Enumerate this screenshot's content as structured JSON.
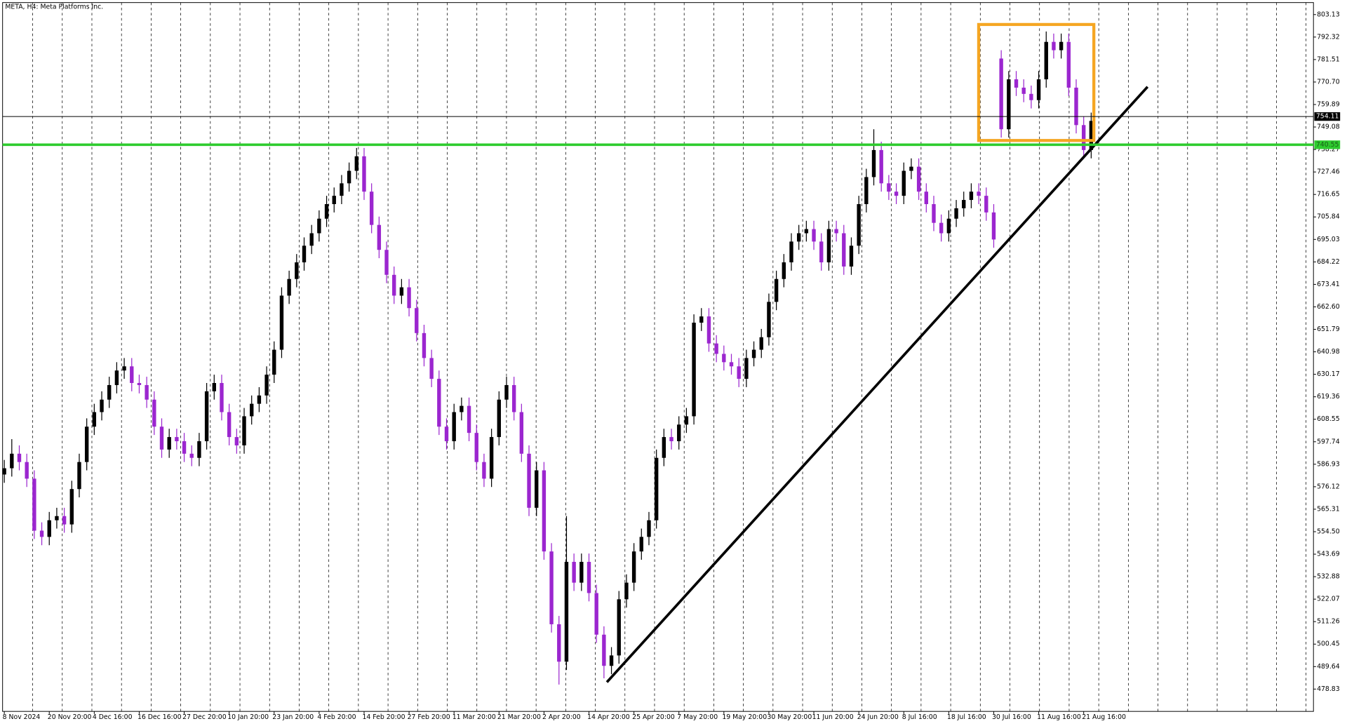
{
  "chart_data": {
    "type": "candlestick",
    "title": "META, H4:  Meta Platforms Inc.",
    "up_color": "#000000",
    "down_color": "#9b26cf",
    "ylim": [
      468.1,
      808.9
    ],
    "yticks": [
      803.13,
      792.32,
      781.51,
      {
        "value": 770.7,
        "label": "770.70"
      },
      759.89,
      749.08,
      738.27,
      727.46,
      716.65,
      705.84,
      695.03,
      684.22,
      673.41,
      {
        "value": 662.6,
        "label": "662.60"
      },
      651.79,
      640.98,
      630.17,
      619.36,
      608.55,
      597.74,
      586.93,
      576.12,
      565.31,
      {
        "value": 554.5,
        "label": "554.50"
      },
      543.69,
      532.88,
      522.07,
      511.26,
      500.45,
      489.64,
      478.83
    ],
    "price_lines": [
      {
        "value": 754.11,
        "color": "#000000"
      },
      {
        "value": 740.55,
        "color": "#2ecc2e"
      }
    ],
    "categories": [
      "8 Nov 2024",
      null,
      null,
      null,
      null,
      null,
      "20 Nov 20:00",
      null,
      null,
      null,
      null,
      null,
      "4 Dec 16:00",
      null,
      null,
      null,
      null,
      null,
      "16 Dec 16:00",
      null,
      null,
      null,
      null,
      null,
      "27 Dec 20:00",
      null,
      null,
      null,
      null,
      null,
      "10 Jan 20:00",
      null,
      null,
      null,
      null,
      null,
      "23 Jan 20:00",
      null,
      null,
      null,
      null,
      null,
      "4 Feb 20:00",
      null,
      null,
      null,
      null,
      null,
      "14 Feb 20:00",
      null,
      null,
      null,
      null,
      null,
      "27 Feb 20:00",
      null,
      null,
      null,
      null,
      null,
      "11 Mar 20:00",
      null,
      null,
      null,
      null,
      null,
      "21 Mar 20:00",
      null,
      null,
      null,
      null,
      null,
      "2 Apr 20:00",
      null,
      null,
      null,
      null,
      null,
      "14 Apr 20:00",
      null,
      null,
      null,
      null,
      null,
      "25 Apr 20:00",
      null,
      null,
      null,
      null,
      null,
      "7 May 20:00",
      null,
      null,
      null,
      null,
      null,
      "19 May 20:00",
      null,
      null,
      null,
      null,
      null,
      "30 May 20:00",
      null,
      null,
      null,
      null,
      null,
      "11 Jun 20:00",
      null,
      null,
      null,
      null,
      null,
      "24 Jun 20:00",
      null,
      null,
      null,
      null,
      null,
      "8 Jul 16:00",
      null,
      null,
      null,
      null,
      null,
      "18 Jul 16:00",
      null,
      null,
      null,
      null,
      null,
      "30 Jul 16:00",
      null,
      null,
      null,
      null,
      null,
      "11 Aug 16:00",
      null,
      null,
      null,
      null,
      null,
      "21 Aug 16:00",
      null
    ],
    "open": [
      582,
      585,
      592,
      588,
      580,
      555,
      552,
      560,
      562,
      558,
      575,
      588,
      605,
      612,
      618,
      625,
      632,
      634,
      626,
      625,
      618,
      605,
      594,
      600,
      598,
      592,
      590,
      598,
      622,
      626,
      612,
      600,
      596,
      610,
      616,
      620,
      630,
      642,
      668,
      676,
      684,
      692,
      698,
      705,
      712,
      716,
      722,
      728,
      735,
      718,
      702,
      690,
      678,
      668,
      672,
      662,
      650,
      638,
      628,
      605,
      598,
      612,
      615,
      602,
      588,
      580,
      600,
      618,
      625,
      612,
      592,
      566,
      584,
      545,
      510,
      492,
      540,
      530,
      540,
      525,
      505,
      490,
      495,
      522,
      530,
      545,
      552,
      560,
      590,
      600,
      598,
      606,
      610,
      655,
      658,
      645,
      640,
      636,
      634,
      628,
      638,
      642,
      648,
      665,
      676,
      684,
      694,
      698,
      700,
      694,
      684,
      700,
      698,
      682,
      692,
      712,
      725,
      738,
      722,
      718,
      716,
      728,
      730,
      718,
      712,
      703,
      698,
      705,
      710,
      714,
      718,
      716,
      708,
      782,
      748,
      772,
      768,
      765,
      762,
      772,
      790,
      786,
      790,
      768,
      750,
      738
    ],
    "high": [
      589,
      599,
      596,
      592,
      584,
      559,
      564,
      566,
      566,
      579,
      592,
      609,
      616,
      622,
      629,
      636,
      638,
      638,
      630,
      629,
      622,
      609,
      604,
      604,
      602,
      596,
      602,
      626,
      630,
      630,
      616,
      604,
      614,
      620,
      624,
      634,
      646,
      672,
      680,
      688,
      696,
      702,
      709,
      716,
      720,
      726,
      732,
      739,
      739,
      722,
      706,
      694,
      682,
      676,
      676,
      666,
      654,
      642,
      632,
      609,
      616,
      619,
      619,
      606,
      592,
      604,
      622,
      629,
      629,
      616,
      596,
      588,
      588,
      549,
      514,
      562,
      544,
      544,
      544,
      529,
      509,
      499,
      526,
      534,
      549,
      556,
      564,
      594,
      604,
      604,
      610,
      614,
      659,
      662,
      662,
      649,
      644,
      640,
      638,
      642,
      646,
      652,
      669,
      680,
      688,
      698,
      702,
      704,
      704,
      698,
      704,
      704,
      702,
      696,
      716,
      729,
      748,
      742,
      726,
      722,
      732,
      734,
      734,
      722,
      716,
      707,
      709,
      714,
      718,
      722,
      722,
      720,
      712,
      786,
      776,
      776,
      772,
      769,
      776,
      795,
      794,
      794,
      794,
      772,
      754,
      756
    ],
    "low": [
      578,
      581,
      584,
      576,
      551,
      548,
      548,
      556,
      554,
      554,
      571,
      584,
      601,
      608,
      614,
      621,
      628,
      622,
      621,
      614,
      601,
      590,
      590,
      594,
      588,
      586,
      586,
      594,
      618,
      608,
      596,
      592,
      592,
      606,
      612,
      616,
      626,
      638,
      664,
      672,
      680,
      688,
      694,
      701,
      708,
      712,
      718,
      724,
      714,
      698,
      686,
      674,
      664,
      664,
      658,
      646,
      634,
      624,
      601,
      594,
      594,
      608,
      598,
      584,
      576,
      576,
      596,
      614,
      608,
      588,
      562,
      562,
      541,
      506,
      481,
      488,
      526,
      526,
      521,
      501,
      484,
      486,
      491,
      518,
      526,
      541,
      548,
      556,
      586,
      594,
      594,
      602,
      606,
      651,
      641,
      636,
      632,
      630,
      624,
      624,
      634,
      638,
      644,
      661,
      672,
      680,
      690,
      694,
      690,
      680,
      680,
      694,
      678,
      678,
      688,
      708,
      721,
      718,
      714,
      712,
      712,
      724,
      714,
      708,
      699,
      694,
      694,
      701,
      706,
      710,
      712,
      704,
      691,
      744,
      744,
      764,
      761,
      758,
      758,
      768,
      782,
      782,
      764,
      746,
      734,
      734
    ],
    "close": [
      585,
      592,
      588,
      580,
      555,
      552,
      560,
      562,
      558,
      575,
      588,
      605,
      612,
      618,
      625,
      632,
      634,
      626,
      625,
      618,
      605,
      594,
      600,
      598,
      592,
      590,
      598,
      622,
      626,
      612,
      600,
      596,
      610,
      616,
      620,
      630,
      642,
      668,
      676,
      684,
      692,
      698,
      705,
      712,
      716,
      722,
      728,
      735,
      718,
      702,
      690,
      678,
      668,
      672,
      662,
      650,
      638,
      628,
      605,
      598,
      612,
      615,
      602,
      588,
      580,
      600,
      618,
      625,
      612,
      592,
      566,
      584,
      545,
      510,
      492,
      540,
      530,
      540,
      525,
      505,
      490,
      495,
      522,
      530,
      545,
      552,
      560,
      590,
      600,
      598,
      606,
      610,
      655,
      658,
      645,
      640,
      636,
      634,
      628,
      638,
      642,
      648,
      665,
      676,
      684,
      694,
      698,
      700,
      694,
      684,
      700,
      698,
      682,
      692,
      712,
      725,
      738,
      722,
      718,
      716,
      728,
      730,
      718,
      712,
      703,
      698,
      705,
      710,
      714,
      718,
      716,
      708,
      695,
      748,
      772,
      768,
      765,
      762,
      772,
      790,
      786,
      790,
      768,
      750,
      738,
      752
    ]
  }
}
